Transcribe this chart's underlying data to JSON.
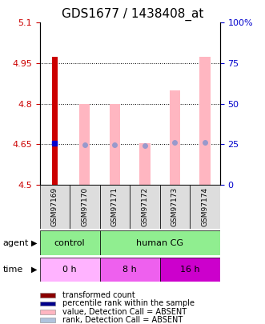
{
  "title": "GDS1677 / 1438408_at",
  "samples": [
    "GSM97169",
    "GSM97170",
    "GSM97171",
    "GSM97172",
    "GSM97173",
    "GSM97174"
  ],
  "ylim_left": [
    4.5,
    5.1
  ],
  "ylim_right": [
    0,
    100
  ],
  "yticks_left": [
    4.5,
    4.65,
    4.8,
    4.95,
    5.1
  ],
  "yticks_right": [
    0,
    25,
    50,
    75,
    100
  ],
  "red_bar_values": [
    4.975,
    null,
    null,
    null,
    null,
    null
  ],
  "blue_dot_values": [
    4.655,
    null,
    null,
    null,
    null,
    null
  ],
  "pink_bar_values": [
    null,
    4.8,
    4.8,
    4.655,
    4.85,
    4.975
  ],
  "blue_light_dot_values": [
    null,
    4.648,
    4.648,
    4.645,
    4.658,
    4.658
  ],
  "legend_items": [
    {
      "color": "#8B0000",
      "label": "transformed count"
    },
    {
      "color": "#00008B",
      "label": "percentile rank within the sample"
    },
    {
      "color": "#FFB6C1",
      "label": "value, Detection Call = ABSENT"
    },
    {
      "color": "#B0C4DE",
      "label": "rank, Detection Call = ABSENT"
    }
  ],
  "bar_width": 0.35,
  "left_tick_color": "#CC0000",
  "right_tick_color": "#0000CC",
  "title_fontsize": 11,
  "tick_fontsize": 8
}
